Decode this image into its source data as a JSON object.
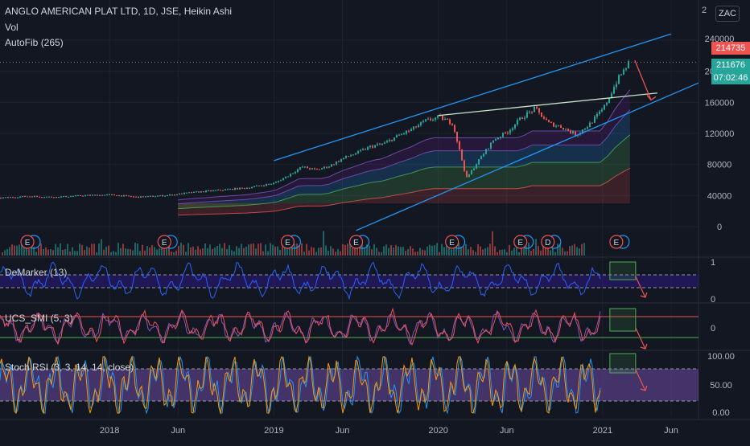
{
  "header": {
    "title": "ANGLO AMERICAN PLAT LTD, 1D, JSE, Heikin Ashi",
    "indicator_vol": "Vol",
    "indicator_autofib": "AutoFib (265)",
    "currency_button": "ZAC",
    "scale_top_char": "2"
  },
  "price_badges": {
    "high": "214735",
    "last": "211676",
    "countdown": "07:02:46"
  },
  "colors": {
    "background": "#131722",
    "grid": "#1e222d",
    "up": "#26a69a",
    "down": "#ef5350",
    "trend": "#2196f3",
    "demarker": "#2962ff",
    "smi_fast": "#ef5350",
    "smi_slow": "#7e57c2",
    "stoch_k": "#2196f3",
    "stoch_d": "#ff9800",
    "band_fill": "#311b92",
    "highlight_box": "#4caf50",
    "arrow": "#ef5350"
  },
  "panes": {
    "demarker": {
      "label": "DeMarker (13)",
      "ticks": [
        "1",
        "0"
      ],
      "upper": 0.7,
      "lower": 0.3
    },
    "smi": {
      "label": "UCS_SMI (5, 3)",
      "ticks": [
        "0"
      ]
    },
    "stoch": {
      "label": "Stoch RSI (3, 3, 14, 14, close)",
      "ticks": [
        "100.00",
        "50.00",
        "0.00"
      ],
      "upper": 80,
      "lower": 20
    }
  },
  "earnings_markers": [
    {
      "label": "E",
      "date": "2017-07"
    },
    {
      "label": "E",
      "date": "2018-05"
    },
    {
      "label": "E",
      "date": "2019-02"
    },
    {
      "label": "E",
      "date": "2019-07"
    },
    {
      "label": "E",
      "date": "2020-02"
    },
    {
      "label": "E",
      "date": "2020-07"
    },
    {
      "label": "D",
      "date": "2020-09"
    },
    {
      "label": "E",
      "date": "2021-02"
    }
  ],
  "chart_data": {
    "type": "line",
    "title": "ANGLO AMERICAN PLAT LTD, 1D, JSE, Heikin Ashi",
    "x_ticks": [
      "2018",
      "Jun",
      "2019",
      "Jun",
      "2020",
      "Jun",
      "2021",
      "Jun"
    ],
    "x_range": [
      "2017-05",
      "2021-08"
    ],
    "y_ticks": [
      "240000",
      "200000",
      "160000",
      "120000",
      "80000",
      "40000",
      "0"
    ],
    "ylim": [
      0,
      245000
    ],
    "grid": true,
    "series": [
      {
        "x": [
          "2017-05",
          "2017-07",
          "2017-09",
          "2017-11",
          "2018-01",
          "2018-03",
          "2018-05",
          "2018-07",
          "2018-09",
          "2018-11",
          "2019-01",
          "2019-02",
          "2019-03",
          "2019-04",
          "2019-05",
          "2019-06",
          "2019-07",
          "2019-08",
          "2019-09",
          "2019-10",
          "2019-11",
          "2019-12",
          "2020-01",
          "2020-02",
          "2020-03",
          "2020-04",
          "2020-05",
          "2020-06",
          "2020-07",
          "2020-08",
          "2020-09",
          "2020-10",
          "2020-11",
          "2020-12",
          "2021-01",
          "2021-02",
          "2021-03"
        ],
        "values": [
          37000,
          39000,
          38000,
          40000,
          41000,
          38000,
          40000,
          44000,
          47000,
          50000,
          56000,
          66000,
          77000,
          73000,
          78000,
          88000,
          95000,
          103000,
          107000,
          117000,
          125000,
          136000,
          141000,
          133000,
          62000,
          88000,
          112000,
          122000,
          140000,
          152000,
          133000,
          128000,
          118000,
          132000,
          152000,
          188000,
          215000
        ]
      }
    ],
    "trend_channel": {
      "upper": {
        "from": [
          "2019-01",
          85000
        ],
        "to": [
          "2021-06",
          248000
        ]
      },
      "lower": {
        "from": [
          "2019-07",
          -5000
        ],
        "to": [
          "2021-08",
          185000
        ]
      },
      "resistance": {
        "from": [
          "2020-01",
          143000
        ],
        "to": [
          "2021-05",
          172000
        ]
      }
    },
    "projection_arrow": {
      "from": [
        "2021-03",
        214000
      ],
      "to": [
        "2021-05",
        163000
      ]
    },
    "high_marker": 214735,
    "last_price": 211676
  }
}
